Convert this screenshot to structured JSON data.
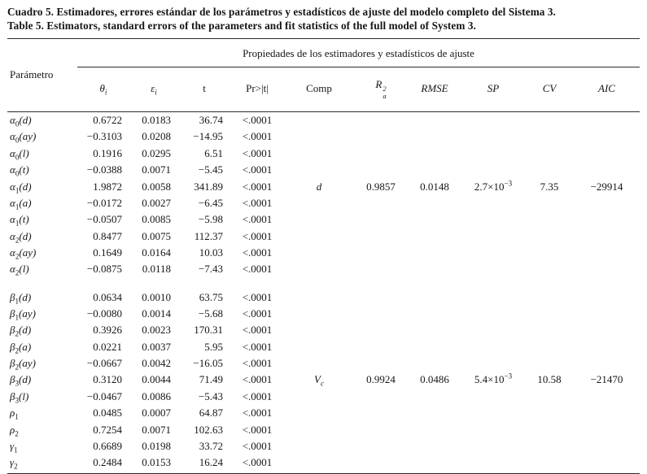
{
  "title": {
    "line1": "Cuadro 5. Estimadores, errores estándar de los parámetros y estadísticos de ajuste del modelo completo del Sistema 3.",
    "line2": "Table 5. Estimators, standard errors of the parameters and fit statistics of the full model of System 3."
  },
  "table": {
    "param_header": "Parámetro",
    "span_header": "Propiedades de los estimadores y estadísticos de ajuste",
    "cols": {
      "theta": {
        "base": "θ",
        "sub": "i"
      },
      "eps": {
        "base": "ε",
        "sub": "i"
      },
      "t": "t",
      "pr": "Pr>|t|",
      "comp": "Comp",
      "r2a": {
        "base": "R",
        "sup": "2",
        "sub": "a"
      },
      "rmse": "RMSE",
      "sp": "SP",
      "cv": "CV",
      "aic": "AIC"
    },
    "groups": [
      {
        "fit": {
          "row": 4,
          "comp_base": "d",
          "comp_sub": "",
          "r2a": "0.9857",
          "rmse": "0.0148",
          "sp_mant": "2.7×10",
          "sp_sup": "−3",
          "cv": "7.35",
          "aic": "−29914"
        },
        "rows": [
          {
            "p": [
              "α",
              "0",
              "(d)"
            ],
            "theta": "0.6722",
            "eps": "0.0183",
            "t": "36.74",
            "pr": "<.0001"
          },
          {
            "p": [
              "α",
              "0",
              "(ay)"
            ],
            "theta": "−0.3103",
            "eps": "0.0208",
            "t": "−14.95",
            "pr": "<.0001"
          },
          {
            "p": [
              "α",
              "0",
              "(l)"
            ],
            "theta": "0.1916",
            "eps": "0.0295",
            "t": "6.51",
            "pr": "<.0001"
          },
          {
            "p": [
              "α",
              "0",
              "(t)"
            ],
            "theta": "−0.0388",
            "eps": "0.0071",
            "t": "−5.45",
            "pr": "<.0001"
          },
          {
            "p": [
              "α",
              "1",
              "(d)"
            ],
            "theta": "1.9872",
            "eps": "0.0058",
            "t": "341.89",
            "pr": "<.0001"
          },
          {
            "p": [
              "α",
              "1",
              "(a)"
            ],
            "theta": "−0.0172",
            "eps": "0.0027",
            "t": "−6.45",
            "pr": "<.0001"
          },
          {
            "p": [
              "α",
              "1",
              "(t)"
            ],
            "theta": "−0.0507",
            "eps": "0.0085",
            "t": "−5.98",
            "pr": "<.0001"
          },
          {
            "p": [
              "α",
              "2",
              "(d)"
            ],
            "theta": "0.8477",
            "eps": "0.0075",
            "t": "112.37",
            "pr": "<.0001"
          },
          {
            "p": [
              "α",
              "2",
              "(ay)"
            ],
            "theta": "0.1649",
            "eps": "0.0164",
            "t": "10.03",
            "pr": "<.0001"
          },
          {
            "p": [
              "α",
              "2",
              "(l)"
            ],
            "theta": "−0.0875",
            "eps": "0.0118",
            "t": "−7.43",
            "pr": "<.0001"
          }
        ]
      },
      {
        "fit": {
          "row": 5,
          "comp_base": "V",
          "comp_sub": "c",
          "r2a": "0.9924",
          "rmse": "0.0486",
          "sp_mant": "5.4×10",
          "sp_sup": "−3",
          "cv": "10.58",
          "aic": "−21470"
        },
        "rows": [
          {
            "p": [
              "β",
              "1",
              "(d)"
            ],
            "theta": "0.0634",
            "eps": "0.0010",
            "t": "63.75",
            "pr": "<.0001"
          },
          {
            "p": [
              "β",
              "1",
              "(ay)"
            ],
            "theta": "−0.0080",
            "eps": "0.0014",
            "t": "−5.68",
            "pr": "<.0001"
          },
          {
            "p": [
              "β",
              "2",
              "(d)"
            ],
            "theta": "0.3926",
            "eps": "0.0023",
            "t": "170.31",
            "pr": "<.0001"
          },
          {
            "p": [
              "β",
              "2",
              "(a)"
            ],
            "theta": "0.0221",
            "eps": "0.0037",
            "t": "5.95",
            "pr": "<.0001"
          },
          {
            "p": [
              "β",
              "2",
              "(ay)"
            ],
            "theta": "−0.0667",
            "eps": "0.0042",
            "t": "−16.05",
            "pr": "<.0001"
          },
          {
            "p": [
              "β",
              "3",
              "(d)"
            ],
            "theta": "0.3120",
            "eps": "0.0044",
            "t": "71.49",
            "pr": "<.0001"
          },
          {
            "p": [
              "β",
              "3",
              "(l)"
            ],
            "theta": "−0.0467",
            "eps": "0.0086",
            "t": "−5.43",
            "pr": "<.0001"
          },
          {
            "p": [
              "ρ",
              "1",
              ""
            ],
            "theta": "0.0485",
            "eps": "0.0007",
            "t": "64.87",
            "pr": "<.0001"
          },
          {
            "p": [
              "ρ",
              "2",
              ""
            ],
            "theta": "0.7254",
            "eps": "0.0071",
            "t": "102.63",
            "pr": "<.0001"
          },
          {
            "p": [
              "γ",
              "1",
              ""
            ],
            "theta": "0.6689",
            "eps": "0.0198",
            "t": "33.72",
            "pr": "<.0001"
          },
          {
            "p": [
              "γ",
              "2",
              ""
            ],
            "theta": "0.2484",
            "eps": "0.0153",
            "t": "16.24",
            "pr": "<.0001"
          }
        ]
      }
    ]
  }
}
